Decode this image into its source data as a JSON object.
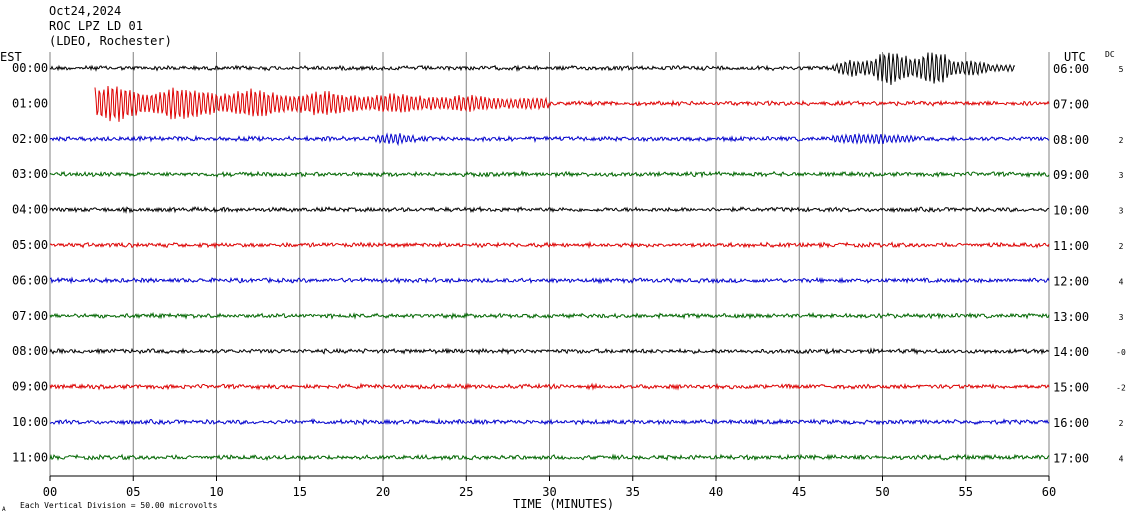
{
  "header": {
    "date": "Oct24,2024",
    "station": "ROC LPZ LD 01",
    "location": "(LDEO, Rochester)"
  },
  "labels": {
    "est": "EST",
    "utc": "UTC",
    "dc": "DC",
    "footer_note": "Each Vertical Division =   50.00 microvolts",
    "corner_mark": "A"
  },
  "colors": {
    "black": "#000000",
    "red": "#dd0000",
    "blue": "#0000cc",
    "green": "#006600",
    "grid": "#808080"
  },
  "chart_data": {
    "type": "line",
    "title": "",
    "xlabel": "TIME (MINUTES)",
    "x_ticks": [
      "00",
      "05",
      "10",
      "15",
      "20",
      "25",
      "30",
      "35",
      "40",
      "45",
      "50",
      "55",
      "60"
    ],
    "xlim": [
      0,
      60
    ],
    "grid": "vertical lines every 5 minutes",
    "rows": [
      {
        "est": "00:00",
        "utc": "06:00",
        "dc": "5",
        "color": "black",
        "trace_start_min": 0,
        "trace_end_min": 58,
        "events": [
          {
            "start_min": 47,
            "end_min": 58,
            "peak_amplitude": 1.0
          }
        ]
      },
      {
        "est": "01:00",
        "utc": "07:00",
        "dc": "",
        "color": "red",
        "trace_start_min": 2.7,
        "trace_end_min": 60,
        "events": [
          {
            "start_min": 2.7,
            "end_min": 30,
            "peak_amplitude": 1.0
          }
        ]
      },
      {
        "est": "02:00",
        "utc": "08:00",
        "dc": "2",
        "color": "blue",
        "trace_start_min": 0,
        "trace_end_min": 60,
        "events": [
          {
            "start_min": 19.5,
            "end_min": 22,
            "peak_amplitude": 0.2
          },
          {
            "start_min": 47,
            "end_min": 52,
            "peak_amplitude": 0.15
          }
        ]
      },
      {
        "est": "03:00",
        "utc": "09:00",
        "dc": "3",
        "color": "green",
        "trace_start_min": 0,
        "trace_end_min": 60,
        "events": []
      },
      {
        "est": "04:00",
        "utc": "10:00",
        "dc": "3",
        "color": "black",
        "trace_start_min": 0,
        "trace_end_min": 60,
        "events": []
      },
      {
        "est": "05:00",
        "utc": "11:00",
        "dc": "2",
        "color": "red",
        "trace_start_min": 0,
        "trace_end_min": 60,
        "events": []
      },
      {
        "est": "06:00",
        "utc": "12:00",
        "dc": "4",
        "color": "blue",
        "trace_start_min": 0,
        "trace_end_min": 60,
        "events": []
      },
      {
        "est": "07:00",
        "utc": "13:00",
        "dc": "3",
        "color": "green",
        "trace_start_min": 0,
        "trace_end_min": 60,
        "events": []
      },
      {
        "est": "08:00",
        "utc": "14:00",
        "dc": "-0",
        "color": "black",
        "trace_start_min": 0,
        "trace_end_min": 60,
        "events": []
      },
      {
        "est": "09:00",
        "utc": "15:00",
        "dc": "-2",
        "color": "red",
        "trace_start_min": 0,
        "trace_end_min": 60,
        "events": []
      },
      {
        "est": "10:00",
        "utc": "16:00",
        "dc": "2",
        "color": "blue",
        "trace_start_min": 0,
        "trace_end_min": 60,
        "events": []
      },
      {
        "est": "11:00",
        "utc": "17:00",
        "dc": "4",
        "color": "green",
        "trace_start_min": 0,
        "trace_end_min": 60,
        "events": []
      }
    ]
  }
}
